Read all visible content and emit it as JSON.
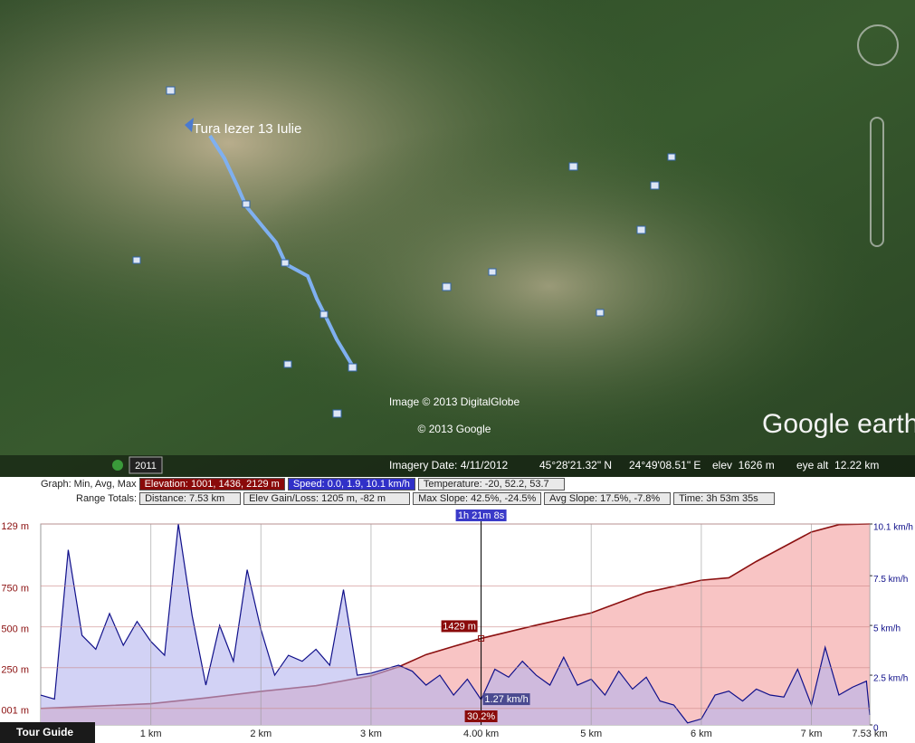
{
  "map": {
    "placemark": "Tura Iezer 13 Iulie",
    "credit_imagery": "Image © 2013 DigitalGlobe",
    "credit_google": "© 2013 Google",
    "logo": "Google earth",
    "year": "2011"
  },
  "status": {
    "imagery_date": "Imagery Date: 4/11/2012",
    "lat": "45°28'21.32\" N",
    "lon": "24°49'08.51\" E",
    "elev": "elev  1626 m",
    "eye_alt": "eye alt  12.22 km"
  },
  "summary": {
    "graph_label": "Graph: Min, Avg, Max",
    "elevation": "Elevation: 1001, 1436, 2129 m",
    "speed": "Speed: 0.0, 1.9, 10.1 km/h",
    "temperature": "Temperature: -20, 52.2, 53.7",
    "range_label": "Range Totals:",
    "distance": "Distance: 7.53 km",
    "gain_loss": "Elev Gain/Loss: 1205 m, -82 m",
    "max_slope": "Max Slope: 42.5%, -24.5%",
    "avg_slope": "Avg Slope: 17.5%, -7.8%",
    "time": "Time: 3h 53m 35s"
  },
  "tour_guide": "Tour Guide",
  "chart_data": {
    "type": "area",
    "xlim": [
      0,
      7.53
    ],
    "xticks": [
      {
        "value": 1,
        "label": "1 km"
      },
      {
        "value": 2,
        "label": "2 km"
      },
      {
        "value": 3,
        "label": "3 km"
      },
      {
        "value": 4,
        "label": "4.00 km"
      },
      {
        "value": 5,
        "label": "5 km"
      },
      {
        "value": 6,
        "label": "6 km"
      },
      {
        "value": 7,
        "label": "7 km"
      },
      {
        "value": 7.53,
        "label": "7.53 km"
      }
    ],
    "ylim": [
      900,
      2129
    ],
    "yticks": [
      {
        "value": 2129,
        "label": "129 m"
      },
      {
        "value": 1750,
        "label": "750 m"
      },
      {
        "value": 1500,
        "label": "500 m"
      },
      {
        "value": 1250,
        "label": "250 m"
      },
      {
        "value": 1001,
        "label": "001 m"
      }
    ],
    "y2lim": [
      0,
      10.1
    ],
    "y2ticks": [
      {
        "value": 10.1,
        "label": "10.1 km/h"
      },
      {
        "value": 7.5,
        "label": "7.5 km/h"
      },
      {
        "value": 5,
        "label": "5 km/h"
      },
      {
        "value": 2.5,
        "label": "2.5 km/h"
      },
      0
    ],
    "grid": true,
    "series": [
      {
        "name": "Elevation",
        "color": "#8b1010",
        "fill": "#f8c4c4",
        "x": [
          0,
          0.5,
          1,
          1.5,
          2,
          2.5,
          3,
          3.25,
          3.5,
          3.75,
          4,
          4.5,
          5,
          5.5,
          6,
          6.25,
          6.5,
          7,
          7.25,
          7.53
        ],
        "values": [
          1001,
          1015,
          1030,
          1065,
          1105,
          1140,
          1200,
          1255,
          1330,
          1380,
          1429,
          1510,
          1585,
          1710,
          1785,
          1800,
          1900,
          2080,
          2125,
          2129
        ]
      },
      {
        "name": "Speed",
        "color": "#10108a",
        "fill": "#b4b4ee",
        "axis": "y2",
        "x": [
          0,
          0.125,
          0.25,
          0.375,
          0.5,
          0.625,
          0.75,
          0.875,
          1,
          1.125,
          1.25,
          1.375,
          1.5,
          1.625,
          1.75,
          1.875,
          2,
          2.125,
          2.25,
          2.375,
          2.5,
          2.625,
          2.75,
          2.875,
          3,
          3.125,
          3.25,
          3.375,
          3.5,
          3.625,
          3.75,
          3.875,
          4,
          4.125,
          4.25,
          4.375,
          4.5,
          4.625,
          4.75,
          4.875,
          5,
          5.125,
          5.25,
          5.375,
          5.5,
          5.625,
          5.75,
          5.875,
          6,
          6.125,
          6.25,
          6.375,
          6.5,
          6.625,
          6.75,
          6.875,
          7,
          7.125,
          7.25,
          7.375,
          7.5,
          7.53
        ],
        "values": [
          1.5,
          1.3,
          8.8,
          4.5,
          3.8,
          5.6,
          4.0,
          5.2,
          4.2,
          3.5,
          10.1,
          5.5,
          2.0,
          5.0,
          3.2,
          7.8,
          4.8,
          2.5,
          3.5,
          3.2,
          3.8,
          3.0,
          6.8,
          2.5,
          2.6,
          2.8,
          3.0,
          2.7,
          2.0,
          2.5,
          1.5,
          2.3,
          1.27,
          2.8,
          2.4,
          3.2,
          2.5,
          2.0,
          3.4,
          2.0,
          2.3,
          1.5,
          2.7,
          1.8,
          2.4,
          1.2,
          1.0,
          0.1,
          0.3,
          1.5,
          1.7,
          1.2,
          1.8,
          1.5,
          1.4,
          2.8,
          1.0,
          3.9,
          1.5,
          1.9,
          2.2,
          0.5
        ]
      }
    ],
    "cursor": {
      "x": 4,
      "time": "1h 21m 8s",
      "elevation": 1429,
      "elevation_label": "1429 m",
      "speed": 1.27,
      "speed_label": "1.27 km/h",
      "slope_label": "30.2%"
    }
  }
}
